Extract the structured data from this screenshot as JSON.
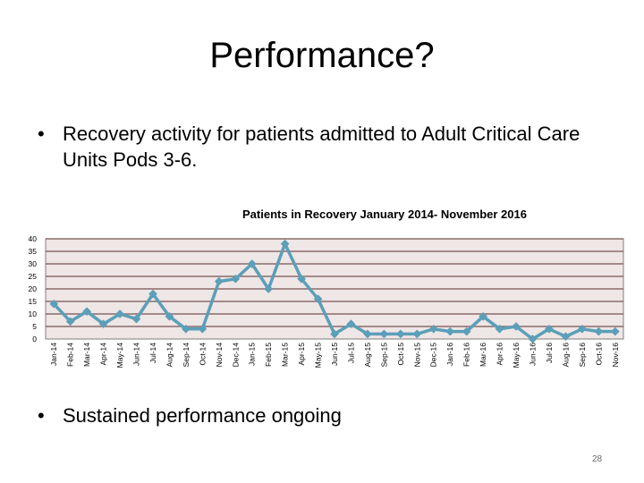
{
  "slide": {
    "title": "Performance?",
    "bullet_symbol": "•",
    "bullet1": "Recovery activity for patients admitted to Adult Critical Care Units Pods 3-6.",
    "bullet2": "Sustained performance ongoing",
    "page_number": "28"
  },
  "chart_data": {
    "type": "line",
    "title": "Patients in Recovery January 2014- November 2016",
    "xlabel": "",
    "ylabel": "",
    "ylim": [
      0,
      40
    ],
    "yticks": [
      0,
      5,
      10,
      15,
      20,
      25,
      30,
      35,
      40
    ],
    "grid": true,
    "categories": [
      "Jan-14",
      "Feb-14",
      "Mar-14",
      "Apr-14",
      "May-14",
      "Jun-14",
      "Jul-14",
      "Aug-14",
      "Sep-14",
      "Oct-14",
      "Nov-14",
      "Dec-14",
      "Jan-15",
      "Feb-15",
      "Mar-15",
      "Apr-15",
      "May-15",
      "Jun-15",
      "Jul-15",
      "Aug-15",
      "Sep-15",
      "Oct-15",
      "Nov-15",
      "Dec-15",
      "Jan-16",
      "Feb-16",
      "Mar-16",
      "Apr-16",
      "May-16",
      "Jun-16",
      "Jul-16",
      "Aug-16",
      "Sep-16",
      "Oct-16",
      "Nov-16"
    ],
    "series": [
      {
        "name": "Patients in Recovery",
        "values": [
          14,
          7,
          11,
          6,
          10,
          8,
          18,
          9,
          4,
          4,
          23,
          24,
          30,
          20,
          38,
          24,
          16,
          2,
          6,
          2,
          2,
          2,
          2,
          4,
          3,
          3,
          9,
          4,
          5,
          0,
          4,
          1,
          4,
          3,
          3
        ]
      }
    ],
    "colors": {
      "line": "#5b9fb8",
      "plot_bg": "#efe6e6",
      "grid": "#8b6a6a"
    }
  }
}
